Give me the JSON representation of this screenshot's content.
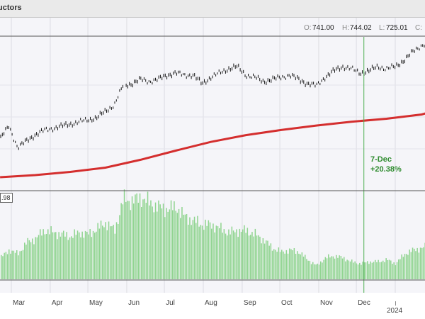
{
  "chart": {
    "title": "uctors",
    "ohlc": {
      "open_label": "O:",
      "open": "741.00",
      "high_label": "H:",
      "high": "744.02",
      "low_label": "L:",
      "low": "725.01",
      "close_label": "C:"
    },
    "annotation": {
      "date": "7-Dec",
      "change": "+20.38%",
      "color": "#2e8b2e"
    },
    "volume_label": ".98"
  },
  "chart_data": [
    {
      "type": "line",
      "panel": "price",
      "series": [
        {
          "style": "ohlc-bars",
          "color": "#111111",
          "x": [
            "2023-02-20",
            "2023-02-27",
            "2023-03-06",
            "2023-03-13",
            "2023-03-20",
            "2023-03-27",
            "2023-04-03",
            "2023-04-10",
            "2023-04-17",
            "2023-04-24",
            "2023-05-01",
            "2023-05-08",
            "2023-05-15",
            "2023-05-22",
            "2023-05-29",
            "2023-06-05",
            "2023-06-12",
            "2023-06-19",
            "2023-06-26",
            "2023-07-03",
            "2023-07-10",
            "2023-07-17",
            "2023-07-24",
            "2023-07-31",
            "2023-08-07",
            "2023-08-14",
            "2023-08-21",
            "2023-08-28",
            "2023-09-04",
            "2023-09-11",
            "2023-09-18",
            "2023-09-25",
            "2023-10-02",
            "2023-10-09",
            "2023-10-16",
            "2023-10-23",
            "2023-10-30",
            "2023-11-06",
            "2023-11-13",
            "2023-11-20",
            "2023-11-27",
            "2023-12-04",
            "2023-12-11",
            "2023-12-18",
            "2023-12-25",
            "2024-01-01",
            "2024-01-08",
            "2024-01-15",
            "2024-01-22",
            "2024-01-29"
          ],
          "y": [
            188,
            194,
            184,
            187,
            190,
            192,
            193,
            194,
            195,
            196,
            197,
            198,
            201,
            204,
            213,
            214,
            216,
            215,
            216,
            218,
            219,
            218,
            218,
            214,
            217,
            219,
            221,
            222,
            218,
            217,
            215,
            216,
            217,
            218,
            216,
            214,
            213,
            217,
            220,
            222,
            221,
            219,
            220,
            222,
            221,
            222,
            225,
            229,
            232,
            234
          ]
        },
        {
          "name": "",
          "style": "moving-average",
          "color": "#d42e2e",
          "x": [
            "2023-02-20",
            "2023-03-20",
            "2023-04-17",
            "2023-05-15",
            "2023-06-12",
            "2023-07-10",
            "2023-08-07",
            "2023-09-04",
            "2023-10-02",
            "2023-10-30",
            "2023-11-27",
            "2023-12-25",
            "2024-01-22",
            "2024-01-29"
          ],
          "y": [
            170,
            171,
            172.5,
            174.5,
            178.2,
            182.5,
            186.6,
            189.8,
            192.2,
            194.3,
            196.1,
            197.5,
            199.5,
            200.6
          ]
        }
      ],
      "ylim": [
        164,
        236
      ],
      "marker": {
        "x": "2023-12-07"
      }
    },
    {
      "type": "bar",
      "panel": "volume",
      "color": "#8fd48f",
      "x": [
        "2023-02-20",
        "2023-02-27",
        "2023-03-06",
        "2023-03-13",
        "2023-03-20",
        "2023-03-27",
        "2023-04-03",
        "2023-04-10",
        "2023-04-17",
        "2023-04-24",
        "2023-05-01",
        "2023-05-08",
        "2023-05-15",
        "2023-05-22",
        "2023-05-29",
        "2023-06-05",
        "2023-06-12",
        "2023-06-19",
        "2023-06-26",
        "2023-07-03",
        "2023-07-10",
        "2023-07-17",
        "2023-07-24",
        "2023-07-31",
        "2023-08-07",
        "2023-08-14",
        "2023-08-21",
        "2023-08-28",
        "2023-09-04",
        "2023-09-11",
        "2023-09-18",
        "2023-09-25",
        "2023-10-02",
        "2023-10-09",
        "2023-10-16",
        "2023-10-23",
        "2023-10-30",
        "2023-11-06",
        "2023-11-13",
        "2023-11-20",
        "2023-11-27",
        "2023-12-04",
        "2023-12-11",
        "2023-12-18",
        "2023-12-25",
        "2024-01-01",
        "2024-01-08",
        "2024-01-15",
        "2024-01-22",
        "2024-01-29"
      ],
      "values": [
        1.1,
        1.5,
        1.3,
        1.9,
        2.1,
        2.5,
        2.4,
        2.3,
        2.2,
        2.4,
        2.3,
        2.6,
        2.9,
        2.5,
        4.1,
        4.0,
        4.2,
        3.9,
        3.7,
        3.6,
        3.7,
        3.2,
        3.0,
        2.8,
        2.8,
        2.6,
        2.4,
        2.5,
        2.5,
        2.3,
        2.0,
        1.6,
        1.4,
        1.5,
        1.4,
        1.0,
        0.7,
        1.1,
        1.2,
        1.1,
        0.9,
        0.8,
        0.9,
        0.9,
        1.0,
        0.8,
        1.3,
        1.5,
        1.6,
        1.8
      ],
      "ylim": [
        0,
        4.5
      ]
    }
  ],
  "axis": {
    "months": [
      "Mar",
      "Apr",
      "May",
      "Jun",
      "Jul",
      "Aug",
      "Sep",
      "Oct",
      "Nov",
      "Dec"
    ],
    "year": "2024"
  }
}
